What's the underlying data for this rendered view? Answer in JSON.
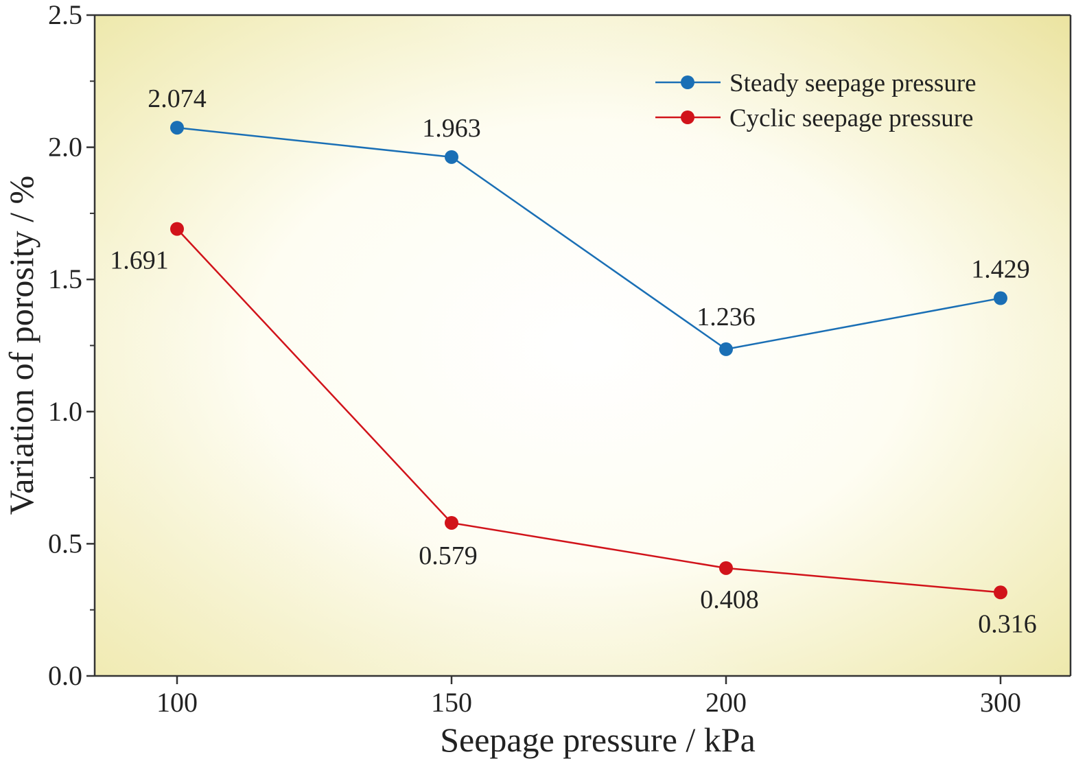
{
  "chart_data": {
    "type": "line",
    "xlabel": "Seepage pressure / kPa",
    "ylabel": "Variation of porosity / %",
    "categories": [
      "100",
      "150",
      "200",
      "300"
    ],
    "ylim": [
      0,
      2.5
    ],
    "yticks": [
      "0.0",
      "0.5",
      "1.0",
      "1.5",
      "2.0",
      "2.5"
    ],
    "grid": false,
    "legend_position": "top-right",
    "background": "radial yellow-to-white gradient",
    "series": [
      {
        "name": "Steady seepage pressure",
        "color": "#1a6fb5",
        "marker": "circle",
        "values": [
          2.074,
          1.963,
          1.236,
          1.429
        ],
        "labels": [
          "2.074",
          "1.963",
          "1.236",
          "1.429"
        ]
      },
      {
        "name": "Cyclic seepage pressure",
        "color": "#d1131a",
        "marker": "circle",
        "values": [
          1.691,
          0.579,
          0.408,
          0.316
        ],
        "labels": [
          "1.691",
          "0.579",
          "0.408",
          "0.316"
        ]
      }
    ]
  }
}
